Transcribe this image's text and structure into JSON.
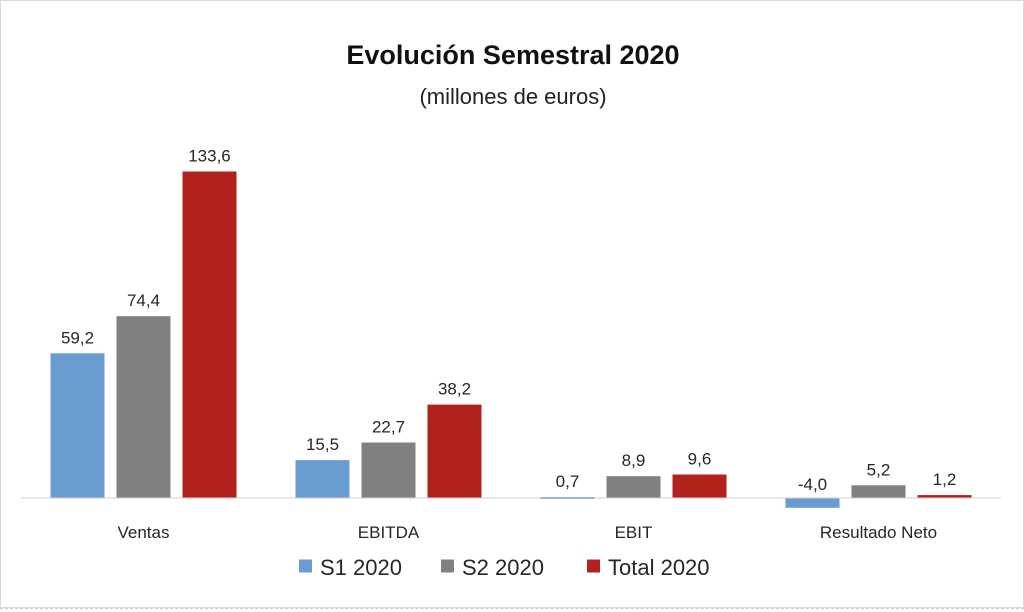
{
  "chart_data": {
    "type": "bar",
    "title": "Evolución Semestral 2020",
    "subtitle": "(millones de euros)",
    "categories": [
      "Ventas",
      "EBITDA",
      "EBIT",
      "Resultado Neto"
    ],
    "series": [
      {
        "name": "S1 2020",
        "color": "#6a9bd1",
        "values": [
          59.2,
          15.5,
          0.7,
          -4.0
        ],
        "labels": [
          "59,2",
          "15,5",
          "0,7",
          "-4,0"
        ]
      },
      {
        "name": "S2 2020",
        "color": "#808080",
        "values": [
          74.4,
          22.7,
          8.9,
          5.2
        ],
        "labels": [
          "74,4",
          "22,7",
          "8,9",
          "5,2"
        ]
      },
      {
        "name": "Total 2020",
        "color": "#b3211d",
        "values": [
          133.6,
          38.2,
          9.6,
          1.2
        ],
        "labels": [
          "133,6",
          "38,2",
          "9,6",
          "1,2"
        ]
      }
    ],
    "xlabel": "",
    "ylabel": "",
    "ylim": [
      -5,
      140
    ],
    "grid": false,
    "legend_position": "bottom"
  }
}
